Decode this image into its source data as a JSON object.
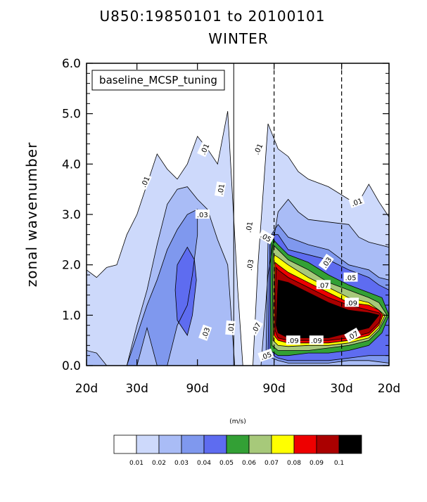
{
  "chart_data": {
    "type": "heatmap",
    "title": "U850:19850101 to 20100101",
    "subtitle": "WINTER",
    "ylabel": "zonal wavenumber",
    "ylim": [
      0,
      6
    ],
    "yticks": [
      "0.0",
      "1.0",
      "2.0",
      "3.0",
      "4.0",
      "5.0",
      "6.0"
    ],
    "xtick_labels": [
      "20d",
      "30d",
      "90d",
      "90d",
      "30d",
      "20d"
    ],
    "legend_box": "baseline_MCSP_tuning",
    "units": "(m/s)",
    "colorbar_levels": [
      "0.01",
      "0.02",
      "0.03",
      "0.04",
      "0.05",
      "0.06",
      "0.07",
      "0.08",
      "0.09",
      "0.1"
    ],
    "colorbar_colors": [
      "#ffffff",
      "#cdd9fb",
      "#a9bcf6",
      "#7f98ee",
      "#5e6cf0",
      "#33a035",
      "#a7c97a",
      "#ffff00",
      "#ee0000",
      "#aa0000",
      "#000000"
    ],
    "contour_labels": [
      ".01",
      ".01",
      ".01",
      ".01",
      ".01",
      ".01",
      ".03",
      ".03",
      ".03",
      ".03",
      ".05",
      ".05",
      ".05",
      ".07",
      ".07",
      ".07",
      ".09",
      ".09",
      ".09",
      ".01"
    ],
    "contours": [
      {
        "level": 0.01,
        "polygon": [
          [
            0,
            1.9
          ],
          [
            1,
            1.75
          ],
          [
            2,
            1.95
          ],
          [
            3,
            2.0
          ],
          [
            4,
            2.6
          ],
          [
            5,
            3.0
          ],
          [
            6,
            3.6
          ],
          [
            7,
            4.2
          ],
          [
            8,
            3.9
          ],
          [
            9,
            3.7
          ],
          [
            10,
            4.0
          ],
          [
            11,
            4.55
          ],
          [
            12,
            4.3
          ],
          [
            13,
            4.0
          ],
          [
            14,
            5.05
          ],
          [
            15,
            1.5
          ],
          [
            15.5,
            0
          ],
          [
            16.5,
            0
          ],
          [
            17,
            2.0
          ],
          [
            18,
            4.8
          ],
          [
            19,
            4.3
          ],
          [
            20,
            4.15
          ],
          [
            21,
            3.85
          ],
          [
            22,
            3.7
          ],
          [
            24,
            3.55
          ],
          [
            26,
            3.3
          ],
          [
            27,
            3.25
          ],
          [
            28,
            3.6
          ],
          [
            29,
            3.25
          ],
          [
            30,
            2.95
          ],
          [
            30,
            0
          ],
          [
            0,
            0
          ]
        ]
      },
      {
        "level": 0.02,
        "polygon": [
          [
            0,
            0.3
          ],
          [
            1,
            0.25
          ],
          [
            2,
            0
          ],
          [
            4,
            0
          ],
          [
            5,
            0.8
          ],
          [
            6,
            1.5
          ],
          [
            7,
            2.4
          ],
          [
            8,
            3.2
          ],
          [
            9,
            3.5
          ],
          [
            10,
            3.55
          ],
          [
            11,
            3.3
          ],
          [
            12,
            3.1
          ],
          [
            13,
            2.5
          ],
          [
            14,
            2.0
          ],
          [
            14.7,
            0
          ],
          [
            17.3,
            0
          ],
          [
            18,
            1.8
          ],
          [
            19,
            3.05
          ],
          [
            20,
            3.3
          ],
          [
            21,
            3.05
          ],
          [
            22,
            2.9
          ],
          [
            24,
            2.85
          ],
          [
            26,
            2.8
          ],
          [
            27,
            2.55
          ],
          [
            28,
            2.45
          ],
          [
            30,
            2.35
          ],
          [
            30,
            0
          ],
          [
            0,
            0
          ]
        ]
      },
      {
        "level": 0.03,
        "polygon": [
          [
            4,
            0
          ],
          [
            5,
            0
          ],
          [
            6,
            0.75
          ],
          [
            7,
            0
          ],
          [
            8,
            0
          ],
          [
            9,
            0.8
          ],
          [
            10,
            1.2
          ],
          [
            10.5,
            1.8
          ],
          [
            11,
            2.6
          ],
          [
            11,
            3.1
          ],
          [
            10,
            3.0
          ],
          [
            9,
            2.7
          ],
          [
            8,
            2.3
          ],
          [
            7,
            1.7
          ],
          [
            6,
            1.2
          ]
        ]
      },
      {
        "level": 0.04,
        "polygon": [
          [
            9,
            2.0
          ],
          [
            10,
            2.35
          ],
          [
            10.7,
            2.1
          ],
          [
            10.9,
            1.7
          ],
          [
            10.5,
            1.0
          ],
          [
            10,
            0.6
          ],
          [
            9,
            0.9
          ],
          [
            8.8,
            1.5
          ]
        ]
      },
      {
        "level": 0.03,
        "polygon": [
          [
            17.8,
            0.2
          ],
          [
            18,
            2.5
          ],
          [
            19,
            2.8
          ],
          [
            20,
            2.55
          ],
          [
            22,
            2.4
          ],
          [
            24,
            2.3
          ],
          [
            26,
            2.0
          ],
          [
            28,
            1.9
          ],
          [
            29,
            1.75
          ],
          [
            30,
            1.7
          ],
          [
            30,
            0.05
          ],
          [
            28,
            0.1
          ],
          [
            26,
            0.1
          ],
          [
            24,
            0.05
          ],
          [
            22,
            0.05
          ],
          [
            20,
            0.05
          ],
          [
            19,
            0.1
          ]
        ]
      },
      {
        "level": 0.04,
        "polygon": [
          [
            18,
            0.25
          ],
          [
            18.2,
            2.6
          ],
          [
            19,
            2.6
          ],
          [
            20,
            2.3
          ],
          [
            22,
            2.2
          ],
          [
            24,
            2.1
          ],
          [
            26,
            1.9
          ],
          [
            28,
            1.75
          ],
          [
            29,
            1.6
          ],
          [
            30,
            1.5
          ],
          [
            30,
            0.2
          ],
          [
            28,
            0.2
          ],
          [
            26,
            0.15
          ],
          [
            24,
            0.1
          ],
          [
            22,
            0.1
          ],
          [
            20,
            0.1
          ],
          [
            19,
            0.15
          ]
        ]
      },
      {
        "level": 0.05,
        "polygon": [
          [
            18.2,
            0.3
          ],
          [
            18.3,
            2.55
          ],
          [
            19,
            2.4
          ],
          [
            20,
            2.2
          ],
          [
            22,
            2.05
          ],
          [
            24,
            1.8
          ],
          [
            26,
            1.6
          ],
          [
            28,
            1.45
          ],
          [
            29.3,
            1.35
          ],
          [
            30,
            1.0
          ],
          [
            29.3,
            0.65
          ],
          [
            28,
            0.4
          ],
          [
            26,
            0.3
          ],
          [
            24,
            0.25
          ],
          [
            22,
            0.25
          ],
          [
            20,
            0.2
          ],
          [
            19,
            0.2
          ]
        ]
      },
      {
        "level": 0.06,
        "polygon": [
          [
            18.4,
            0.4
          ],
          [
            18.5,
            2.4
          ],
          [
            19,
            2.3
          ],
          [
            20,
            2.1
          ],
          [
            22,
            1.9
          ],
          [
            24,
            1.65
          ],
          [
            26,
            1.5
          ],
          [
            28,
            1.35
          ],
          [
            29,
            1.25
          ],
          [
            29.8,
            1.0
          ],
          [
            29,
            0.7
          ],
          [
            28,
            0.5
          ],
          [
            26,
            0.4
          ],
          [
            24,
            0.35
          ],
          [
            22,
            0.3
          ],
          [
            20,
            0.3
          ],
          [
            19,
            0.3
          ]
        ]
      },
      {
        "level": 0.07,
        "polygon": [
          [
            18.5,
            0.5
          ],
          [
            18.6,
            2.2
          ],
          [
            19,
            2.15
          ],
          [
            20,
            2.0
          ],
          [
            22,
            1.75
          ],
          [
            24,
            1.55
          ],
          [
            26,
            1.35
          ],
          [
            28,
            1.25
          ],
          [
            29,
            1.1
          ],
          [
            29.6,
            1.0
          ],
          [
            29,
            0.75
          ],
          [
            28,
            0.55
          ],
          [
            26,
            0.45
          ],
          [
            24,
            0.4
          ],
          [
            22,
            0.4
          ],
          [
            20,
            0.38
          ],
          [
            19,
            0.4
          ]
        ]
      },
      {
        "level": 0.08,
        "polygon": [
          [
            18.6,
            0.6
          ],
          [
            18.7,
            2.05
          ],
          [
            19,
            2.0
          ],
          [
            20,
            1.85
          ],
          [
            22,
            1.65
          ],
          [
            24,
            1.45
          ],
          [
            26,
            1.25
          ],
          [
            28,
            1.2
          ],
          [
            29,
            1.1
          ],
          [
            29.4,
            1.0
          ],
          [
            29,
            0.8
          ],
          [
            28,
            0.6
          ],
          [
            26,
            0.5
          ],
          [
            24,
            0.45
          ],
          [
            22,
            0.45
          ],
          [
            20,
            0.45
          ],
          [
            19,
            0.5
          ]
        ]
      },
      {
        "level": 0.09,
        "polygon": [
          [
            18.7,
            0.7
          ],
          [
            18.8,
            1.95
          ],
          [
            19,
            1.9
          ],
          [
            20,
            1.75
          ],
          [
            22,
            1.55
          ],
          [
            24,
            1.35
          ],
          [
            26,
            1.2
          ],
          [
            28,
            1.1
          ],
          [
            29,
            1.05
          ],
          [
            29.2,
            1.0
          ],
          [
            29,
            0.85
          ],
          [
            28,
            0.65
          ],
          [
            26,
            0.55
          ],
          [
            24,
            0.5
          ],
          [
            22,
            0.5
          ],
          [
            20,
            0.5
          ],
          [
            19,
            0.55
          ]
        ]
      },
      {
        "level": 0.1,
        "polygon": [
          [
            18.8,
            0.8
          ],
          [
            19,
            1.7
          ],
          [
            20,
            1.65
          ],
          [
            22,
            1.45
          ],
          [
            24,
            1.25
          ],
          [
            26,
            1.1
          ],
          [
            28,
            1.05
          ],
          [
            29,
            1.0
          ],
          [
            28,
            0.75
          ],
          [
            26,
            0.65
          ],
          [
            24,
            0.55
          ],
          [
            22,
            0.55
          ],
          [
            20,
            0.55
          ],
          [
            19,
            0.65
          ]
        ]
      }
    ]
  }
}
